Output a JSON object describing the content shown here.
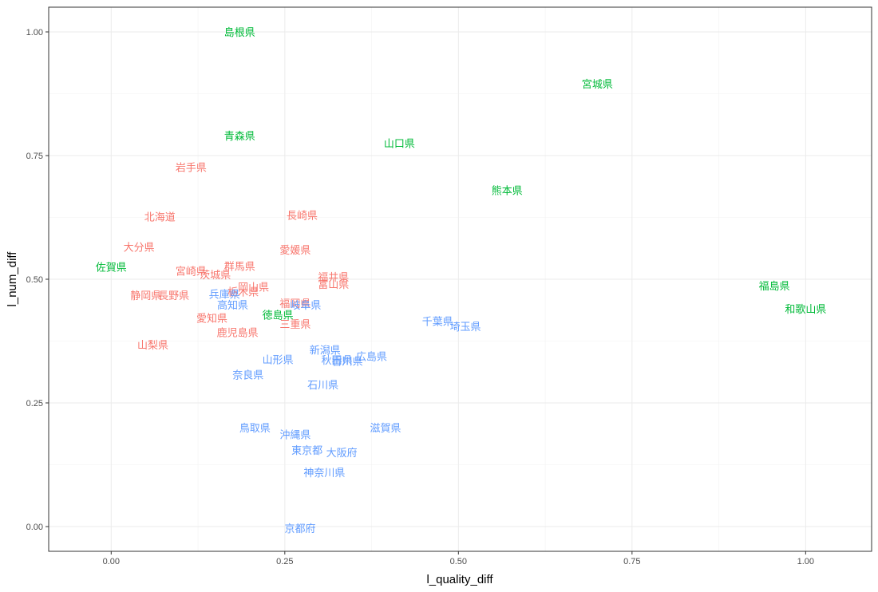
{
  "chart_data": {
    "type": "scatter",
    "xlabel": "l_quality_diff",
    "ylabel": "l_num_diff",
    "xlim": [
      -0.09,
      1.095
    ],
    "ylim": [
      -0.05,
      1.05
    ],
    "x_ticks": [
      0.0,
      0.25,
      0.5,
      0.75,
      1.0
    ],
    "y_ticks": [
      0.0,
      0.25,
      0.5,
      0.75,
      1.0
    ],
    "x_tick_labels": [
      "0.00",
      "0.25",
      "0.50",
      "0.75",
      "1.00"
    ],
    "y_tick_labels": [
      "0.00",
      "0.25",
      "0.50",
      "0.75",
      "1.00"
    ],
    "grid": true,
    "legend": "none",
    "colors": {
      "red": "#f8766d",
      "green": "#00ba38",
      "blue": "#619cff"
    },
    "points": [
      {
        "label": "島根県",
        "x": 0.185,
        "y": 1.0,
        "group": "green"
      },
      {
        "label": "宮城県",
        "x": 0.7,
        "y": 0.895,
        "group": "green"
      },
      {
        "label": "青森県",
        "x": 0.185,
        "y": 0.79,
        "group": "green"
      },
      {
        "label": "山口県",
        "x": 0.415,
        "y": 0.775,
        "group": "green"
      },
      {
        "label": "熊本県",
        "x": 0.57,
        "y": 0.68,
        "group": "green"
      },
      {
        "label": "佐賀県",
        "x": 0.0,
        "y": 0.525,
        "group": "green"
      },
      {
        "label": "徳島県",
        "x": 0.24,
        "y": 0.428,
        "group": "green"
      },
      {
        "label": "福島県",
        "x": 0.955,
        "y": 0.487,
        "group": "green"
      },
      {
        "label": "和歌山県",
        "x": 1.0,
        "y": 0.44,
        "group": "green"
      },
      {
        "label": "岩手県",
        "x": 0.115,
        "y": 0.727,
        "group": "red"
      },
      {
        "label": "北海道",
        "x": 0.07,
        "y": 0.627,
        "group": "red"
      },
      {
        "label": "長崎県",
        "x": 0.275,
        "y": 0.63,
        "group": "red"
      },
      {
        "label": "大分県",
        "x": 0.04,
        "y": 0.565,
        "group": "red"
      },
      {
        "label": "愛媛県",
        "x": 0.265,
        "y": 0.56,
        "group": "red"
      },
      {
        "label": "宮崎県",
        "x": 0.115,
        "y": 0.517,
        "group": "red"
      },
      {
        "label": "茨城県",
        "x": 0.15,
        "y": 0.51,
        "group": "red"
      },
      {
        "label": "群馬県",
        "x": 0.185,
        "y": 0.527,
        "group": "red"
      },
      {
        "label": "福井県",
        "x": 0.32,
        "y": 0.505,
        "group": "red"
      },
      {
        "label": "富山県",
        "x": 0.32,
        "y": 0.49,
        "group": "red"
      },
      {
        "label": "岡山県",
        "x": 0.205,
        "y": 0.485,
        "group": "red"
      },
      {
        "label": "栃木県",
        "x": 0.19,
        "y": 0.475,
        "group": "red"
      },
      {
        "label": "静岡県",
        "x": 0.05,
        "y": 0.468,
        "group": "red"
      },
      {
        "label": "長野県",
        "x": 0.09,
        "y": 0.468,
        "group": "red"
      },
      {
        "label": "福岡県",
        "x": 0.265,
        "y": 0.452,
        "group": "red"
      },
      {
        "label": "愛知県",
        "x": 0.145,
        "y": 0.422,
        "group": "red"
      },
      {
        "label": "三重県",
        "x": 0.265,
        "y": 0.41,
        "group": "red"
      },
      {
        "label": "鹿児島県",
        "x": 0.182,
        "y": 0.393,
        "group": "red"
      },
      {
        "label": "山梨県",
        "x": 0.06,
        "y": 0.368,
        "group": "red"
      },
      {
        "label": "兵庫県",
        "x": 0.163,
        "y": 0.47,
        "group": "blue"
      },
      {
        "label": "高知県",
        "x": 0.175,
        "y": 0.448,
        "group": "blue"
      },
      {
        "label": "岐阜県",
        "x": 0.28,
        "y": 0.448,
        "group": "blue"
      },
      {
        "label": "千葉県",
        "x": 0.47,
        "y": 0.415,
        "group": "blue"
      },
      {
        "label": "埼玉県",
        "x": 0.51,
        "y": 0.405,
        "group": "blue"
      },
      {
        "label": "新潟県",
        "x": 0.308,
        "y": 0.357,
        "group": "blue"
      },
      {
        "label": "秋田県",
        "x": 0.325,
        "y": 0.337,
        "group": "blue"
      },
      {
        "label": "香川県",
        "x": 0.34,
        "y": 0.335,
        "group": "blue"
      },
      {
        "label": "広島県",
        "x": 0.375,
        "y": 0.344,
        "group": "blue"
      },
      {
        "label": "山形県",
        "x": 0.24,
        "y": 0.338,
        "group": "blue"
      },
      {
        "label": "奈良県",
        "x": 0.197,
        "y": 0.307,
        "group": "blue"
      },
      {
        "label": "石川県",
        "x": 0.305,
        "y": 0.287,
        "group": "blue"
      },
      {
        "label": "鳥取県",
        "x": 0.207,
        "y": 0.2,
        "group": "blue"
      },
      {
        "label": "滋賀県",
        "x": 0.395,
        "y": 0.2,
        "group": "blue"
      },
      {
        "label": "沖縄県",
        "x": 0.265,
        "y": 0.186,
        "group": "blue"
      },
      {
        "label": "東京都",
        "x": 0.282,
        "y": 0.155,
        "group": "blue"
      },
      {
        "label": "大阪府",
        "x": 0.332,
        "y": 0.15,
        "group": "blue"
      },
      {
        "label": "神奈川県",
        "x": 0.307,
        "y": 0.11,
        "group": "blue"
      },
      {
        "label": "京都府",
        "x": 0.272,
        "y": -0.003,
        "group": "blue"
      }
    ]
  }
}
